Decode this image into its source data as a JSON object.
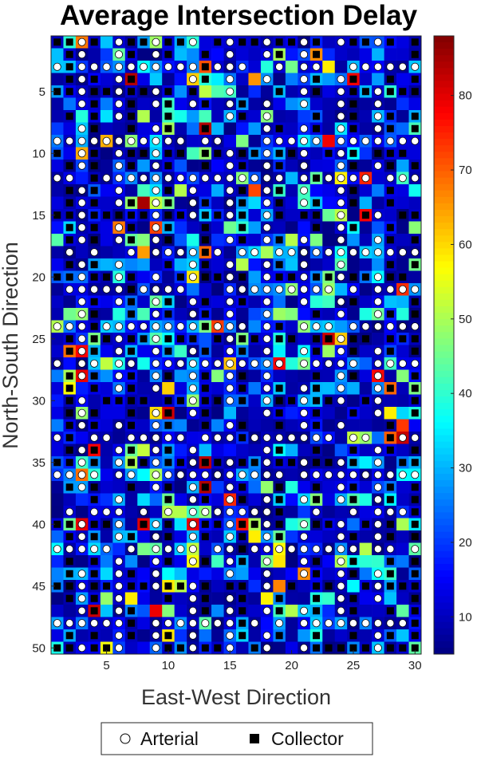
{
  "chart_data": {
    "type": "heatmap",
    "title": "Average Intersection Delay",
    "xlabel": "East-West Direction",
    "ylabel": "North-South Direction",
    "grid": {
      "columns": 30,
      "rows": 50
    },
    "x_ticks": [
      5,
      10,
      15,
      20,
      25,
      30
    ],
    "y_ticks": [
      5,
      10,
      15,
      20,
      25,
      30,
      35,
      40,
      45,
      50
    ],
    "xlim": [
      0.5,
      30.5
    ],
    "ylim": [
      0.5,
      50.5
    ],
    "y_direction": "reversed",
    "colorbar": {
      "colormap": "jet",
      "range": [
        5,
        88
      ],
      "ticks": [
        10,
        20,
        30,
        40,
        50,
        60,
        70,
        80
      ]
    },
    "arterial_rows": [
      3,
      9,
      12,
      18,
      21,
      24,
      27,
      33,
      36,
      39,
      42,
      48
    ],
    "arterial_columns": [
      3,
      6,
      9,
      12,
      15,
      18,
      21,
      24,
      27
    ],
    "collector_rows": [
      1,
      5,
      10,
      15,
      20,
      25,
      30,
      35,
      40,
      45,
      50
    ],
    "collector_columns": [
      2,
      4,
      7,
      10,
      13,
      16,
      19,
      22,
      25,
      28,
      30
    ],
    "delay_summary": {
      "typical_min": 5,
      "typical_max": 35,
      "max_observed": 88
    },
    "legend": {
      "placement": "bottom",
      "entries": [
        {
          "label": "Arterial",
          "marker": "circle",
          "color": "#ffffff"
        },
        {
          "label": "Collector",
          "marker": "square",
          "color": "#000000"
        }
      ]
    }
  },
  "colors": {
    "axis": "#262626",
    "arterial_marker": "#ffffff",
    "collector_marker": "#000000"
  }
}
